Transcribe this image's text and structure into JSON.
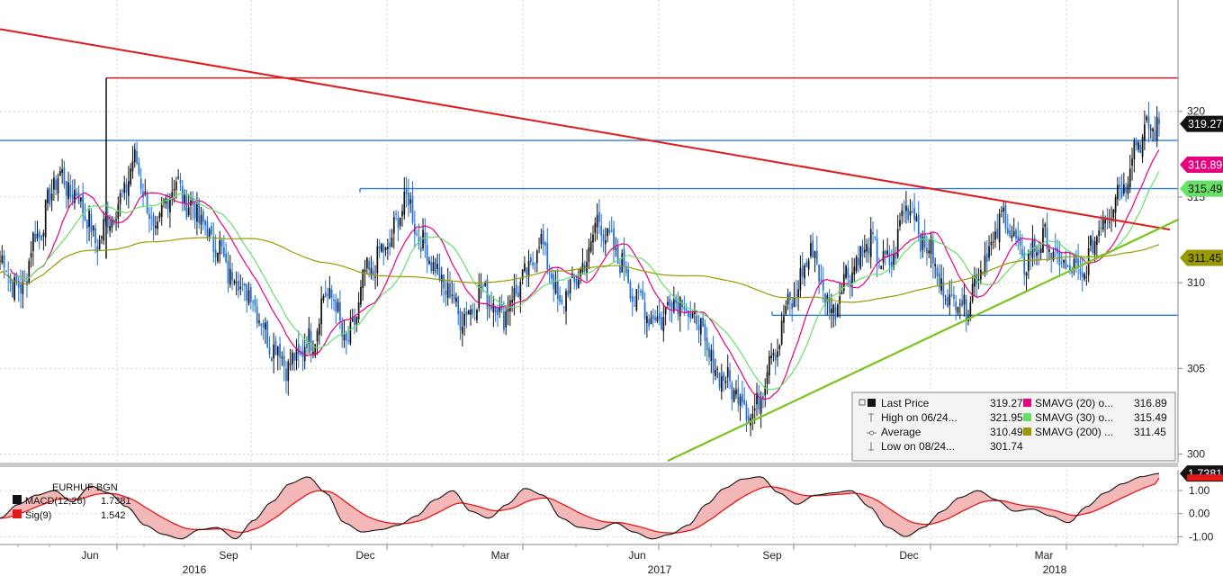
{
  "chart_data": [
    {
      "type": "candlestick",
      "ticker": "EURHUF BGN",
      "ylim": [
        299.5,
        326.5
      ],
      "y_ticks": [
        "300",
        "305",
        "310",
        "315",
        "320"
      ],
      "y_tick_values": [
        300,
        305,
        310,
        315,
        320
      ],
      "x_month_labels": [
        "Jun",
        "Sep",
        "Dec",
        "Mar",
        "Jun",
        "Sep",
        "Dec",
        "Mar"
      ],
      "x_year_labels": [
        "2016",
        "2017",
        "2018"
      ],
      "colors": {
        "up": "#111111",
        "down": "#1e6fe0",
        "sma20": "#e6007e",
        "sma30": "#66e066",
        "sma200": "#9a9a00",
        "trendline_down": "#e31818",
        "trendline_up": "#7dc31e",
        "horizontal_level": "#2b7de8",
        "high_line": "#c0202a"
      },
      "price_path": [
        {
          "t": "2016-04",
          "v": 311.3
        },
        {
          "t": "2016-04b",
          "v": 309.5
        },
        {
          "t": "2016-05",
          "v": 313.0
        },
        {
          "t": "2016-05b",
          "v": 316.2
        },
        {
          "t": "2016-05c",
          "v": 315.0
        },
        {
          "t": "2016-05d",
          "v": 312.5
        },
        {
          "t": "2016-06a",
          "v": 314.3
        },
        {
          "t": "2016-06b",
          "v": 317.0
        },
        {
          "t": "2016-06c",
          "v": 313.0
        },
        {
          "t": "2016-06d",
          "v": 315.8
        },
        {
          "t": "2016-07",
          "v": 314.3
        },
        {
          "t": "2016-07b",
          "v": 312.5
        },
        {
          "t": "2016-08",
          "v": 310.5
        },
        {
          "t": "2016-08b",
          "v": 309.2
        },
        {
          "t": "2016-09",
          "v": 306.5
        },
        {
          "t": "2016-09b",
          "v": 305.2
        },
        {
          "t": "2016-09c",
          "v": 306.5
        },
        {
          "t": "2016-10",
          "v": 309.5
        },
        {
          "t": "2016-10b",
          "v": 306.5
        },
        {
          "t": "2016-10c",
          "v": 310.5
        },
        {
          "t": "2016-11",
          "v": 312.0
        },
        {
          "t": "2016-11b",
          "v": 314.8
        },
        {
          "t": "2016-12",
          "v": 312.0
        },
        {
          "t": "2016-12b",
          "v": 309.8
        },
        {
          "t": "2017-01",
          "v": 308.0
        },
        {
          "t": "2017-01b",
          "v": 309.5
        },
        {
          "t": "2017-02",
          "v": 308.2
        },
        {
          "t": "2017-02b",
          "v": 310.0
        },
        {
          "t": "2017-03",
          "v": 312.3
        },
        {
          "t": "2017-03b",
          "v": 308.8
        },
        {
          "t": "2017-04",
          "v": 310.5
        },
        {
          "t": "2017-04b",
          "v": 313.5
        },
        {
          "t": "2017-05",
          "v": 311.5
        },
        {
          "t": "2017-05b",
          "v": 309.0
        },
        {
          "t": "2017-06",
          "v": 307.8
        },
        {
          "t": "2017-06b",
          "v": 309.2
        },
        {
          "t": "2017-07",
          "v": 307.8
        },
        {
          "t": "2017-07b",
          "v": 305.0
        },
        {
          "t": "2017-08",
          "v": 303.8
        },
        {
          "t": "2017-08b",
          "v": 302.3
        },
        {
          "t": "2017-09",
          "v": 306.0
        },
        {
          "t": "2017-09b",
          "v": 309.0
        },
        {
          "t": "2017-09c",
          "v": 311.8
        },
        {
          "t": "2017-10",
          "v": 308.4
        },
        {
          "t": "2017-10b",
          "v": 310.8
        },
        {
          "t": "2017-11",
          "v": 312.2
        },
        {
          "t": "2017-11b",
          "v": 311.0
        },
        {
          "t": "2017-12",
          "v": 314.6
        },
        {
          "t": "2017-12b",
          "v": 312.0
        },
        {
          "t": "2018-01",
          "v": 309.2
        },
        {
          "t": "2018-01b",
          "v": 308.8
        },
        {
          "t": "2018-01c",
          "v": 311.5
        },
        {
          "t": "2018-02",
          "v": 313.8
        },
        {
          "t": "2018-02b",
          "v": 311.2
        },
        {
          "t": "2018-03",
          "v": 312.5
        },
        {
          "t": "2018-03b",
          "v": 311.0
        },
        {
          "t": "2018-04",
          "v": 310.4
        },
        {
          "t": "2018-04b",
          "v": 313.5
        },
        {
          "t": "2018-05",
          "v": 315.5
        },
        {
          "t": "2018-05b",
          "v": 318.5
        },
        {
          "t": "2018-06",
          "v": 319.27
        }
      ],
      "studies": {
        "sma20_last": 316.89,
        "sma30_last": 315.49,
        "sma200_last": 311.45
      },
      "reference_levels": {
        "high_line": 321.95,
        "blue_upper": 318.3,
        "blue_mid": 315.49,
        "blue_lower": 308.1,
        "downtrend": {
          "from": 324.8,
          "to": 313.1
        },
        "uptrend": {
          "from": 299.6,
          "to": 313.7
        }
      },
      "price_labels": [
        {
          "text": "319.27",
          "bg": "#111111",
          "fg": "#ffffff",
          "v": 319.27
        },
        {
          "text": "316.89",
          "bg": "#e6007e",
          "fg": "#ffffff",
          "v": 316.89
        },
        {
          "text": "315.49",
          "bg": "#66e066",
          "fg": "#111111",
          "v": 315.49
        },
        {
          "text": "311.45",
          "bg": "#9a9a00",
          "fg": "#111111",
          "v": 311.45
        }
      ],
      "legend": {
        "rows": [
          {
            "icon": "square",
            "label": "Last Price",
            "value": "319.27"
          },
          {
            "icon": "high",
            "label": "High on 06/24...",
            "value": "321.95"
          },
          {
            "icon": "avg",
            "label": "Average",
            "value": "310.49"
          },
          {
            "icon": "low",
            "label": "Low on 08/24...",
            "value": "301.74"
          }
        ],
        "studies": [
          {
            "color": "#e6007e",
            "label": "SMAVG (20) o...",
            "value": "316.89"
          },
          {
            "color": "#66e066",
            "label": "SMAVG (30) o...",
            "value": "315.49"
          },
          {
            "color": "#9a9a00",
            "label": "SMAVG (200) ...",
            "value": "311.45"
          }
        ]
      }
    },
    {
      "type": "line",
      "title": "EURHUF BGN",
      "ylim": [
        -1.3,
        1.9
      ],
      "y_ticks": [
        "1.00",
        "0.00",
        "-1.00"
      ],
      "y_tick_values": [
        1,
        0,
        -1
      ],
      "series": [
        {
          "name": "MACD(12,26)",
          "value": "1.7381",
          "color": "#111111"
        },
        {
          "name": "Sig(9)",
          "value": "1.542",
          "color": "#e31818"
        }
      ],
      "macd_path": [
        -0.2,
        0.4,
        0.8,
        1.0,
        0.5,
        1.2,
        0.9,
        0.3,
        -0.5,
        -0.9,
        -1.1,
        -0.7,
        -0.6,
        -1.1,
        -0.3,
        0.5,
        1.3,
        1.6,
        0.9,
        -0.4,
        -0.8,
        -0.7,
        -0.5,
        -0.1,
        0.6,
        1.0,
        0.1,
        -0.2,
        0.4,
        1.1,
        0.8,
        -0.2,
        -0.6,
        -0.7,
        -0.4,
        -0.8,
        -1.1,
        -0.9,
        -0.5,
        0.4,
        1.1,
        1.5,
        1.6,
        0.9,
        0.4,
        0.8,
        0.9,
        1.0,
        0.3,
        -0.6,
        -1.0,
        -0.6,
        0.1,
        0.7,
        1.0,
        0.6,
        0.1,
        0.2,
        -0.1,
        -0.4,
        0.3,
        0.9,
        1.3,
        1.6,
        1.74
      ],
      "macd_label": {
        "text": "1.7381",
        "bg": "#111111",
        "fg": "#ffffff"
      }
    }
  ]
}
